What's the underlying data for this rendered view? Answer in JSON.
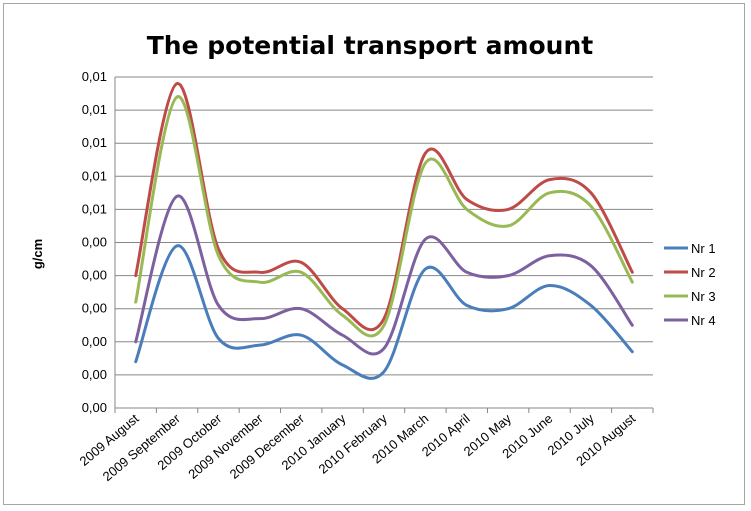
{
  "chart_data": {
    "type": "line",
    "title": "The potential transport amount",
    "xlabel": "",
    "ylabel": "g/cm",
    "categories": [
      "2009 August",
      "2009 September",
      "2009 October",
      "2009 November",
      "2009 December",
      "2010 January",
      "2010 February",
      "2010 March",
      "2010 April",
      "2010 May",
      "2010 June",
      "2010 July",
      "2010 August"
    ],
    "y_tick_labels": [
      "0,00",
      "0,00",
      "0,00",
      "0,00",
      "0,00",
      "0,00",
      "0,01",
      "0,01",
      "0,01",
      "0,01",
      "0,01"
    ],
    "ylim": [
      0,
      10
    ],
    "grid": true,
    "legend_position": "right",
    "series": [
      {
        "name": "Nr 1",
        "color": "#4a7ebb",
        "values": [
          1.4,
          4.9,
          2.1,
          1.9,
          2.2,
          1.3,
          1.1,
          4.2,
          3.1,
          3.0,
          3.7,
          3.1,
          1.7
        ]
      },
      {
        "name": "Nr 2",
        "color": "#be4b48",
        "values": [
          4.0,
          9.8,
          4.8,
          4.1,
          4.4,
          3.0,
          2.7,
          7.7,
          6.3,
          6.0,
          6.9,
          6.5,
          4.1
        ]
      },
      {
        "name": "Nr 3",
        "color": "#98b954",
        "values": [
          3.2,
          9.4,
          4.6,
          3.8,
          4.1,
          2.8,
          2.5,
          7.4,
          6.0,
          5.5,
          6.5,
          6.1,
          3.8
        ]
      },
      {
        "name": "Nr 4",
        "color": "#7d60a0",
        "values": [
          2.0,
          6.4,
          3.1,
          2.7,
          3.0,
          2.2,
          1.8,
          5.1,
          4.1,
          4.0,
          4.6,
          4.3,
          2.5
        ]
      }
    ]
  }
}
